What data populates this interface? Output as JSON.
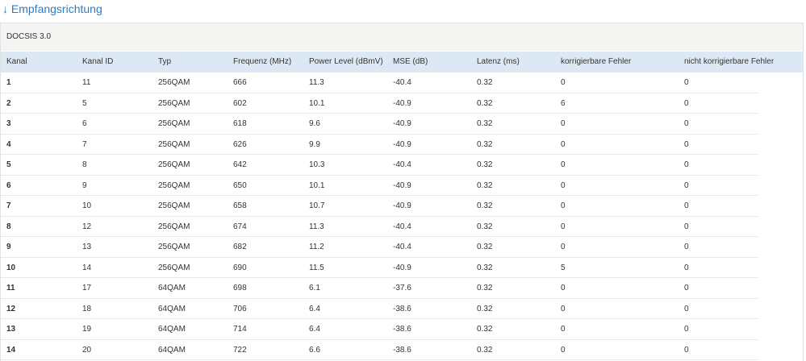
{
  "title": "↓ Empfangsrichtung",
  "table": {
    "caption": "DOCSIS 3.0",
    "header": [
      "Kanal",
      "Kanal ID",
      "Typ",
      "Frequenz (MHz)",
      "Power Level (dBmV)",
      "MSE (dB)",
      "Latenz (ms)",
      "korrigierbare Fehler",
      "nicht korrigierbare Fehler"
    ],
    "rows": [
      [
        "1",
        "11",
        "256QAM",
        "666",
        "11.3",
        "-40.4",
        "0.32",
        "0",
        "0"
      ],
      [
        "2",
        "5",
        "256QAM",
        "602",
        "10.1",
        "-40.9",
        "0.32",
        "6",
        "0"
      ],
      [
        "3",
        "6",
        "256QAM",
        "618",
        "9.6",
        "-40.9",
        "0.32",
        "0",
        "0"
      ],
      [
        "4",
        "7",
        "256QAM",
        "626",
        "9.9",
        "-40.9",
        "0.32",
        "0",
        "0"
      ],
      [
        "5",
        "8",
        "256QAM",
        "642",
        "10.3",
        "-40.4",
        "0.32",
        "0",
        "0"
      ],
      [
        "6",
        "9",
        "256QAM",
        "650",
        "10.1",
        "-40.9",
        "0.32",
        "0",
        "0"
      ],
      [
        "7",
        "10",
        "256QAM",
        "658",
        "10.7",
        "-40.9",
        "0.32",
        "0",
        "0"
      ],
      [
        "8",
        "12",
        "256QAM",
        "674",
        "11.3",
        "-40.4",
        "0.32",
        "0",
        "0"
      ],
      [
        "9",
        "13",
        "256QAM",
        "682",
        "11.2",
        "-40.4",
        "0.32",
        "0",
        "0"
      ],
      [
        "10",
        "14",
        "256QAM",
        "690",
        "11.5",
        "-40.9",
        "0.32",
        "5",
        "0"
      ],
      [
        "11",
        "17",
        "64QAM",
        "698",
        "6.1",
        "-37.6",
        "0.32",
        "0",
        "0"
      ],
      [
        "12",
        "18",
        "64QAM",
        "706",
        "6.4",
        "-38.6",
        "0.32",
        "0",
        "0"
      ],
      [
        "13",
        "19",
        "64QAM",
        "714",
        "6.4",
        "-38.6",
        "0.32",
        "0",
        "0"
      ],
      [
        "14",
        "20",
        "64QAM",
        "722",
        "6.6",
        "-38.6",
        "0.32",
        "0",
        "0"
      ]
    ]
  }
}
